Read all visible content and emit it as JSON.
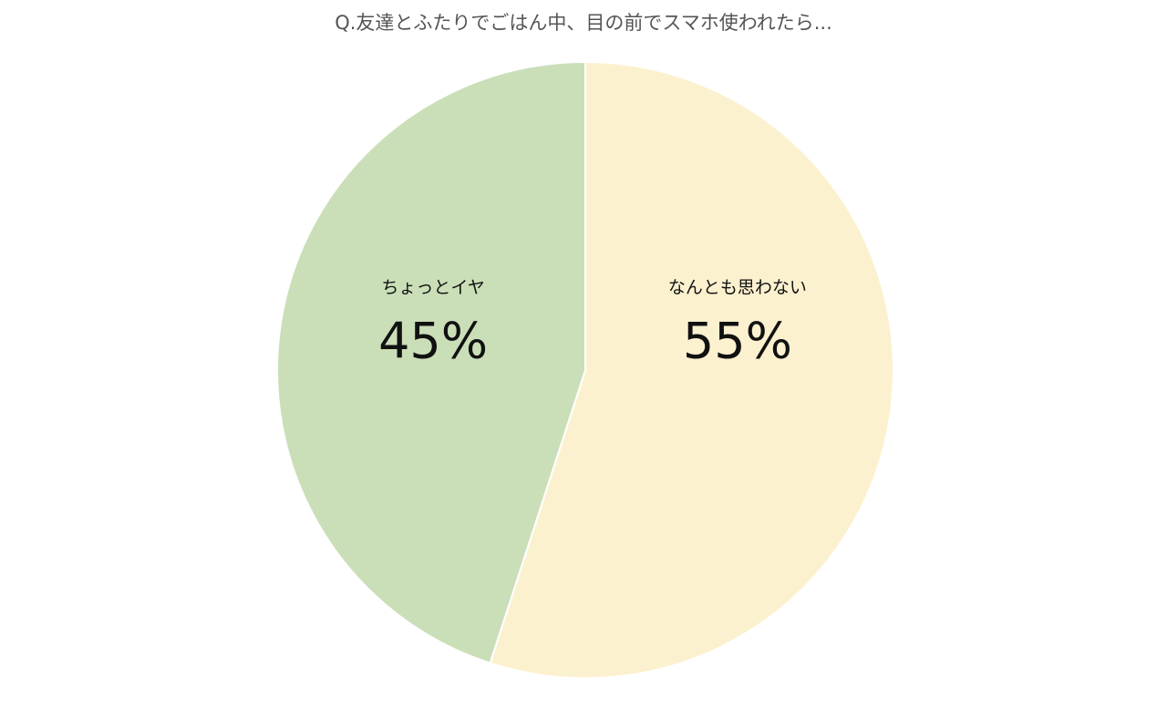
{
  "chart_data": {
    "type": "pie",
    "title": "Q.友達とふたりでごはん中、目の前でスマホ使われたら...",
    "categories": [
      "なんとも思わない",
      "ちょっとイヤ"
    ],
    "values": [
      55,
      45
    ],
    "value_labels": [
      "55%",
      "45%"
    ],
    "colors": [
      "#fcf1cf",
      "#cadfb8"
    ]
  }
}
